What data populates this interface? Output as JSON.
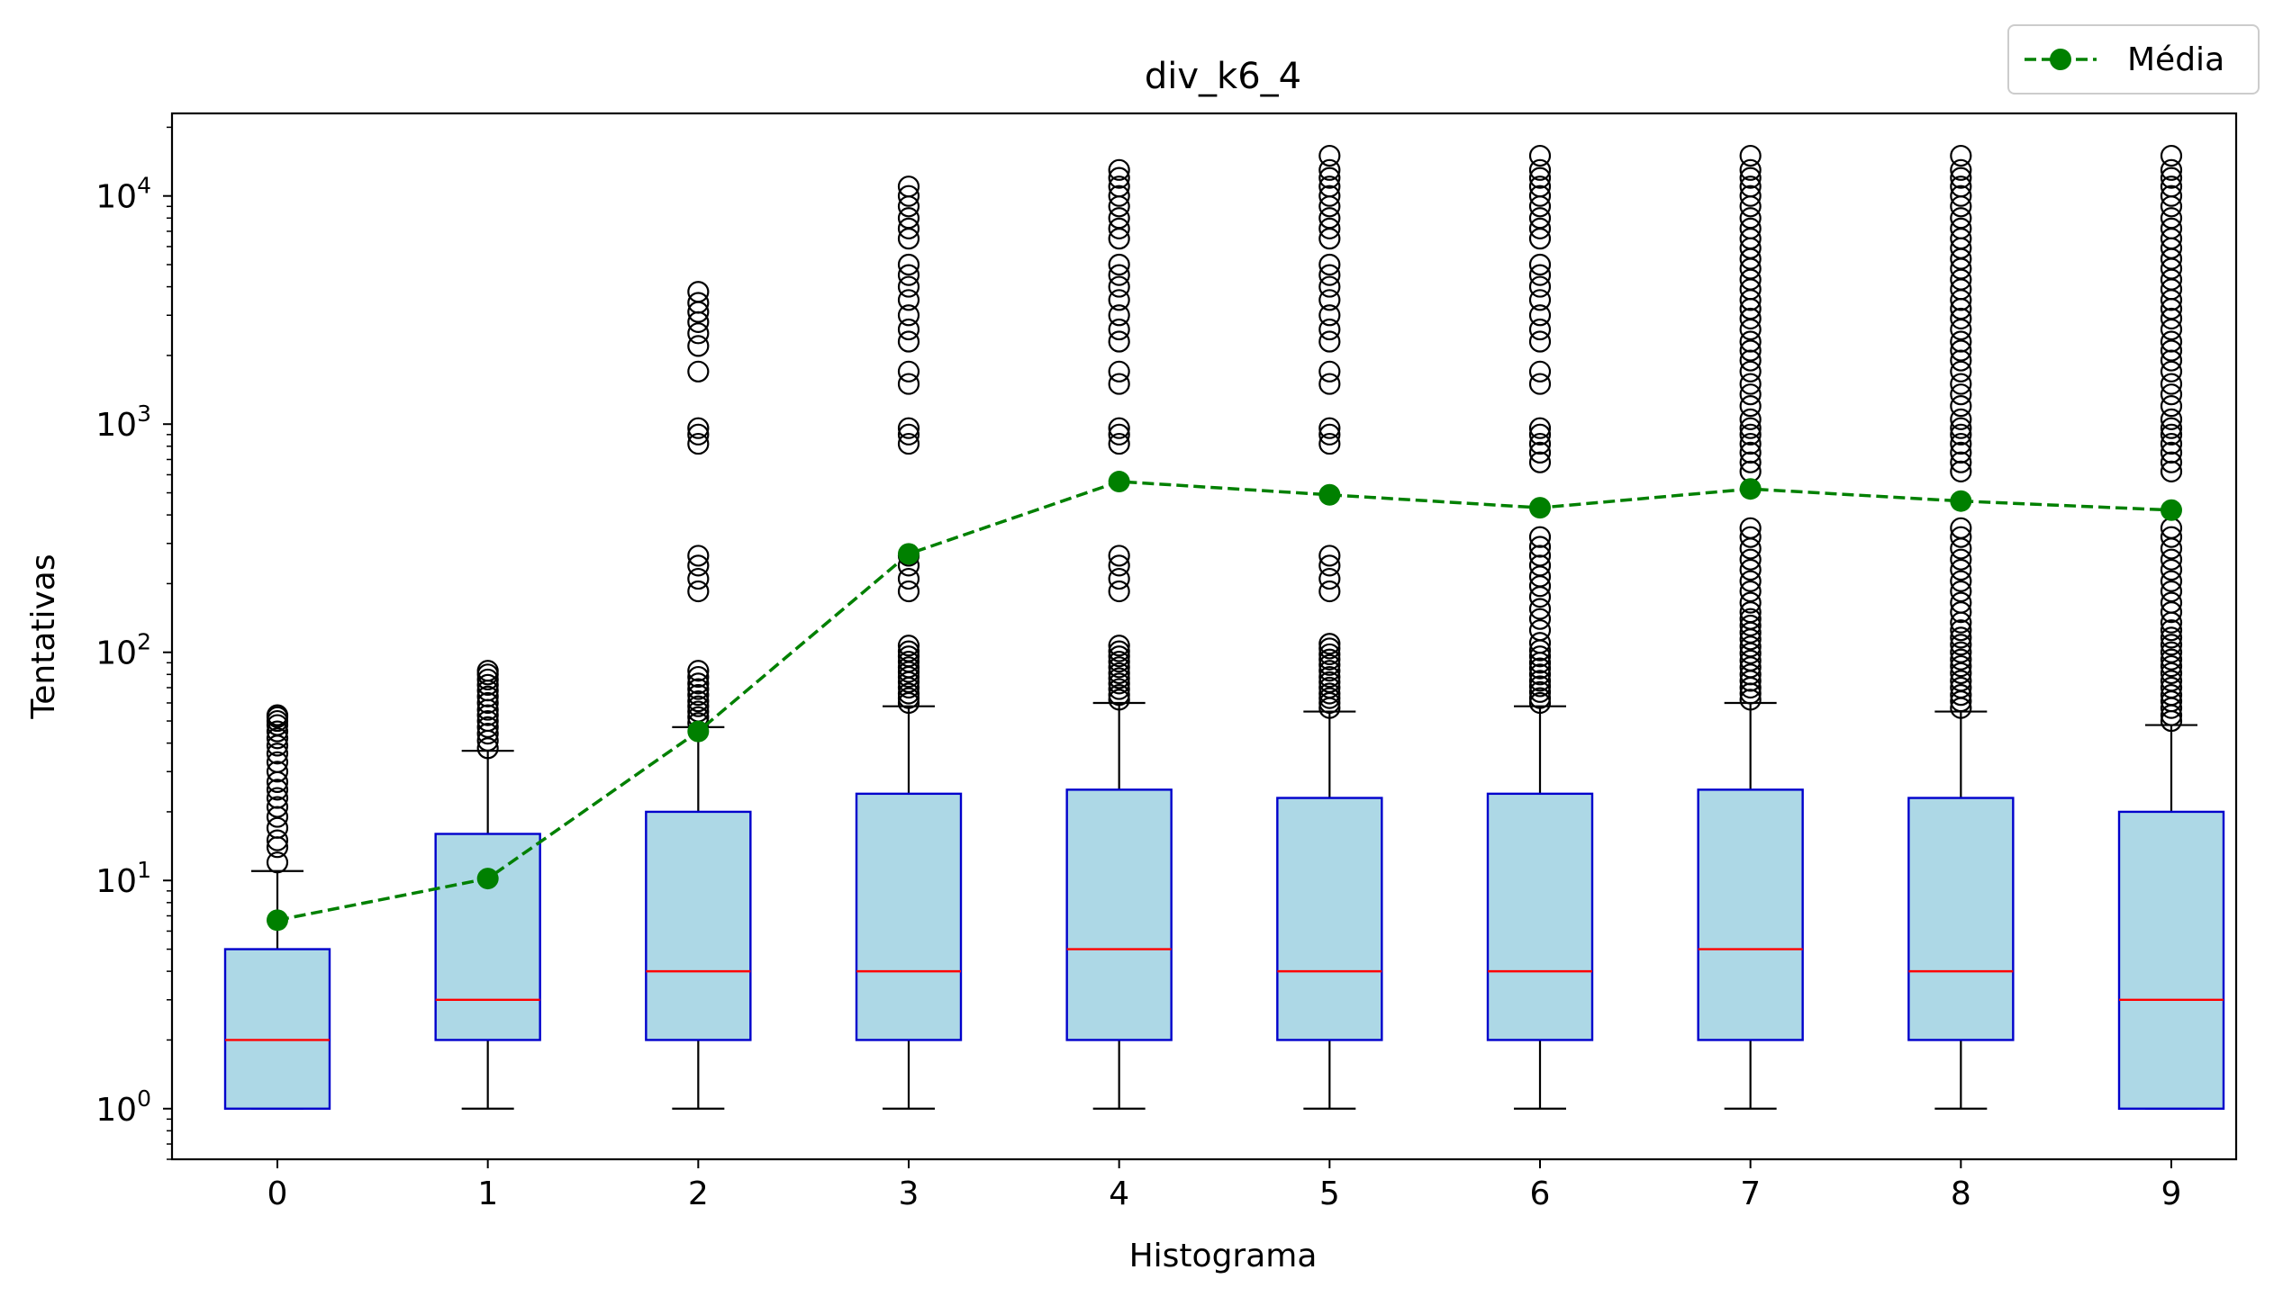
{
  "chart_data": {
    "type": "boxplot",
    "title": "div_k6_4",
    "xlabel": "Histograma",
    "ylabel": "Tentativas",
    "yscale": "log",
    "ylim": [
      0.6,
      23000
    ],
    "grid": false,
    "legend_position": "top-right",
    "categories": [
      "0",
      "1",
      "2",
      "3",
      "4",
      "5",
      "6",
      "7",
      "8",
      "9"
    ],
    "y_tick_labels": [
      {
        "base": "10",
        "exp": "0",
        "value": 1
      },
      {
        "base": "10",
        "exp": "1",
        "value": 10
      },
      {
        "base": "10",
        "exp": "2",
        "value": 100
      },
      {
        "base": "10",
        "exp": "3",
        "value": 1000
      },
      {
        "base": "10",
        "exp": "4",
        "value": 10000
      }
    ],
    "boxes": [
      {
        "whisker_low": 1,
        "q1": 1,
        "median": 2,
        "q3": 5,
        "whisker_high": 11,
        "outliers": [
          12,
          14,
          15,
          17,
          19,
          21,
          23,
          25,
          27,
          30,
          33,
          36,
          39,
          42,
          45,
          48,
          50,
          52,
          53
        ]
      },
      {
        "whisker_low": 1,
        "q1": 2,
        "median": 3,
        "q3": 16,
        "whisker_high": 37,
        "outliers": [
          38,
          41,
          44,
          47,
          50,
          53,
          56,
          60,
          64,
          68,
          72,
          76,
          80,
          83
        ]
      },
      {
        "whisker_low": 1,
        "q1": 2,
        "median": 4,
        "q3": 20,
        "whisker_high": 47,
        "outliers": [
          49,
          52,
          55,
          58,
          61,
          65,
          69,
          73,
          78,
          83,
          185,
          210,
          240,
          265,
          820,
          900,
          960,
          1700,
          2200,
          2500,
          2800,
          3100,
          3400,
          3800
        ]
      },
      {
        "whisker_low": 1,
        "q1": 2,
        "median": 4,
        "q3": 24,
        "whisker_high": 58,
        "outliers": [
          60,
          63,
          66,
          70,
          74,
          78,
          82,
          86,
          91,
          96,
          101,
          107,
          185,
          210,
          240,
          265,
          820,
          900,
          960,
          1500,
          1700,
          2300,
          2600,
          3000,
          3500,
          4000,
          4500,
          5000,
          6500,
          7200,
          8000,
          9000,
          10000,
          11000
        ]
      },
      {
        "whisker_low": 1,
        "q1": 2,
        "median": 5,
        "q3": 25,
        "whisker_high": 60,
        "outliers": [
          62,
          65,
          69,
          73,
          77,
          81,
          86,
          91,
          96,
          101,
          107,
          185,
          210,
          240,
          265,
          820,
          900,
          960,
          1500,
          1700,
          2300,
          2600,
          3000,
          3500,
          4000,
          4500,
          5000,
          6500,
          7200,
          8000,
          9000,
          10000,
          11000,
          12000,
          13000
        ]
      },
      {
        "whisker_low": 1,
        "q1": 2,
        "median": 4,
        "q3": 23,
        "whisker_high": 55,
        "outliers": [
          57,
          60,
          63,
          66,
          70,
          74,
          78,
          83,
          88,
          93,
          98,
          104,
          109,
          185,
          210,
          240,
          265,
          820,
          900,
          960,
          1500,
          1700,
          2300,
          2600,
          3000,
          3500,
          4000,
          4500,
          5000,
          6500,
          7200,
          8000,
          9000,
          10000,
          11000,
          12000,
          13000,
          15000
        ]
      },
      {
        "whisker_low": 1,
        "q1": 2,
        "median": 4,
        "q3": 24,
        "whisker_high": 58,
        "outliers": [
          60,
          63,
          67,
          71,
          75,
          80,
          85,
          90,
          96,
          102,
          110,
          125,
          140,
          155,
          175,
          195,
          215,
          240,
          265,
          290,
          320,
          680,
          750,
          820,
          900,
          960,
          1500,
          1700,
          2300,
          2600,
          3000,
          3500,
          4000,
          4500,
          5000,
          6500,
          7200,
          8000,
          9000,
          10000,
          11000,
          12000,
          13000,
          15000
        ]
      },
      {
        "whisker_low": 1,
        "q1": 2,
        "median": 5,
        "q3": 25,
        "whisker_high": 60,
        "outliers": [
          62,
          66,
          70,
          75,
          80,
          86,
          92,
          99,
          106,
          114,
          122,
          131,
          140,
          150,
          165,
          185,
          205,
          230,
          255,
          285,
          320,
          350,
          620,
          680,
          750,
          820,
          900,
          960,
          1050,
          1200,
          1350,
          1500,
          1700,
          1900,
          2100,
          2300,
          2600,
          2900,
          3200,
          3500,
          3900,
          4300,
          4800,
          5300,
          5900,
          6500,
          7200,
          8000,
          9000,
          10000,
          11000,
          12000,
          13000,
          15000
        ]
      },
      {
        "whisker_low": 1,
        "q1": 2,
        "median": 4,
        "q3": 23,
        "whisker_high": 55,
        "outliers": [
          57,
          61,
          65,
          70,
          75,
          81,
          87,
          93,
          100,
          108,
          116,
          125,
          135,
          150,
          165,
          185,
          205,
          230,
          255,
          285,
          320,
          350,
          620,
          680,
          750,
          820,
          900,
          960,
          1050,
          1200,
          1350,
          1500,
          1700,
          1900,
          2100,
          2300,
          2600,
          2900,
          3200,
          3500,
          3900,
          4300,
          4800,
          5300,
          5900,
          6500,
          7200,
          8000,
          9000,
          10000,
          11000,
          12000,
          13000,
          15000
        ]
      },
      {
        "whisker_low": 1,
        "q1": 1,
        "median": 3,
        "q3": 20,
        "whisker_high": 48,
        "outliers": [
          50,
          53,
          57,
          61,
          65,
          70,
          75,
          81,
          87,
          93,
          100,
          108,
          116,
          125,
          135,
          150,
          165,
          185,
          205,
          230,
          255,
          285,
          320,
          350,
          620,
          680,
          750,
          820,
          900,
          960,
          1050,
          1200,
          1350,
          1500,
          1700,
          1900,
          2100,
          2300,
          2600,
          2900,
          3200,
          3500,
          3900,
          4300,
          4800,
          5300,
          5900,
          6500,
          7200,
          8000,
          9000,
          10000,
          11000,
          12000,
          13000,
          15000
        ]
      }
    ],
    "series": [
      {
        "name": "Média",
        "values": [
          6.7,
          10.2,
          45,
          270,
          560,
          490,
          430,
          520,
          460,
          420
        ]
      }
    ],
    "colors": {
      "box_fill": "#add8e6",
      "box_edge": "#0000cc",
      "median": "#ff0000",
      "whisker": "#000000",
      "outlier_edge": "#000000",
      "mean_line": "#008000"
    }
  }
}
